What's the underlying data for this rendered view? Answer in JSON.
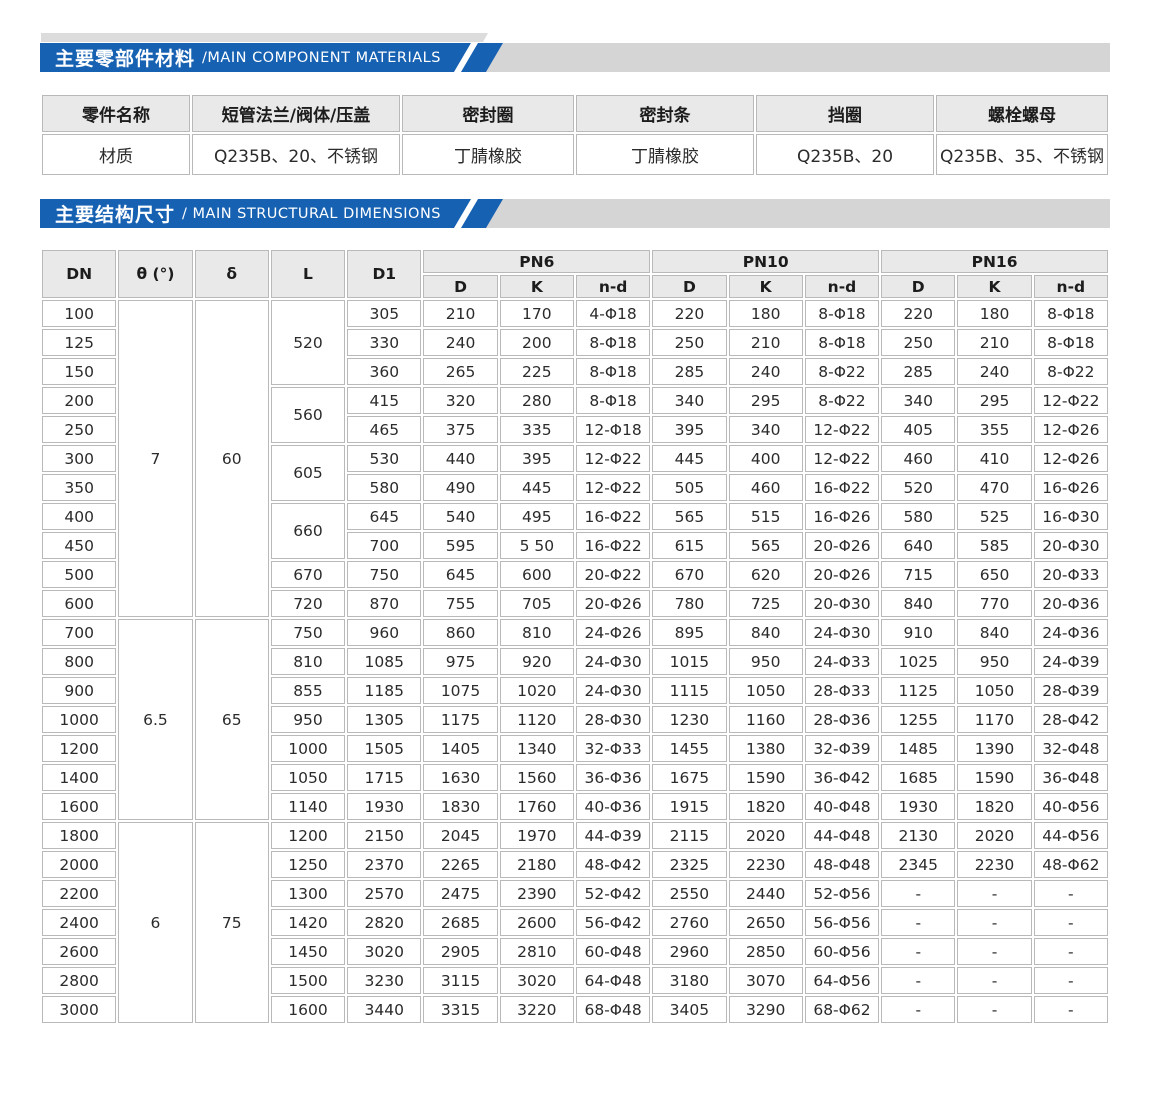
{
  "colors": {
    "accent_blue": "#1661b2",
    "banner_gray": "#d5d5d5",
    "header_cell_gray": "#e9e9e9",
    "grid_line": "#b9b9b9"
  },
  "sections": {
    "materials": {
      "title_cn": "主要零部件材料",
      "title_en": "/MAIN COMPONENT MATERIALS"
    },
    "dimensions": {
      "title_cn": "主要结构尺寸",
      "title_en": "/ MAIN STRUCTURAL DIMENSIONS"
    }
  },
  "materials_table": {
    "headers": [
      "零件名称",
      "短管法兰/阀体/压盖",
      "密封圈",
      "密封条",
      "挡圈",
      "螺栓螺母"
    ],
    "rows": [
      [
        "材质",
        "Q235B、20、不锈钢",
        "丁腈橡胶",
        "丁腈橡胶",
        "Q235B、20",
        "Q235B、35、不锈钢"
      ]
    ]
  },
  "dimensions_table": {
    "main_headers": [
      "DN",
      "θ (°)",
      "δ",
      "L",
      "D1"
    ],
    "pn_groups": [
      "PN6",
      "PN10",
      "PN16"
    ],
    "sub_headers": [
      "D",
      "K",
      "n-d"
    ],
    "rows": [
      {
        "dn": "100",
        "theta": [
          "7",
          11
        ],
        "delta": [
          "60",
          11
        ],
        "l": [
          "520",
          3
        ],
        "d1": "305",
        "pn6": [
          "210",
          "170",
          "4-Φ18"
        ],
        "pn10": [
          "220",
          "180",
          "8-Φ18"
        ],
        "pn16": [
          "220",
          "180",
          "8-Φ18"
        ]
      },
      {
        "dn": "125",
        "d1": "330",
        "pn6": [
          "240",
          "200",
          "8-Φ18"
        ],
        "pn10": [
          "250",
          "210",
          "8-Φ18"
        ],
        "pn16": [
          "250",
          "210",
          "8-Φ18"
        ]
      },
      {
        "dn": "150",
        "d1": "360",
        "pn6": [
          "265",
          "225",
          "8-Φ18"
        ],
        "pn10": [
          "285",
          "240",
          "8-Φ22"
        ],
        "pn16": [
          "285",
          "240",
          "8-Φ22"
        ]
      },
      {
        "dn": "200",
        "l": [
          "560",
          2
        ],
        "d1": "415",
        "pn6": [
          "320",
          "280",
          "8-Φ18"
        ],
        "pn10": [
          "340",
          "295",
          "8-Φ22"
        ],
        "pn16": [
          "340",
          "295",
          "12-Φ22"
        ]
      },
      {
        "dn": "250",
        "d1": "465",
        "pn6": [
          "375",
          "335",
          "12-Φ18"
        ],
        "pn10": [
          "395",
          "340",
          "12-Φ22"
        ],
        "pn16": [
          "405",
          "355",
          "12-Φ26"
        ]
      },
      {
        "dn": "300",
        "l": [
          "605",
          2
        ],
        "d1": "530",
        "pn6": [
          "440",
          "395",
          "12-Φ22"
        ],
        "pn10": [
          "445",
          "400",
          "12-Φ22"
        ],
        "pn16": [
          "460",
          "410",
          "12-Φ26"
        ]
      },
      {
        "dn": "350",
        "d1": "580",
        "pn6": [
          "490",
          "445",
          "12-Φ22"
        ],
        "pn10": [
          "505",
          "460",
          "16-Φ22"
        ],
        "pn16": [
          "520",
          "470",
          "16-Φ26"
        ]
      },
      {
        "dn": "400",
        "l": [
          "660",
          2
        ],
        "d1": "645",
        "pn6": [
          "540",
          "495",
          "16-Φ22"
        ],
        "pn10": [
          "565",
          "515",
          "16-Φ26"
        ],
        "pn16": [
          "580",
          "525",
          "16-Φ30"
        ]
      },
      {
        "dn": "450",
        "d1": "700",
        "pn6": [
          "595",
          "5 50",
          "16-Φ22"
        ],
        "pn10": [
          "615",
          "565",
          "20-Φ26"
        ],
        "pn16": [
          "640",
          "585",
          "20-Φ30"
        ]
      },
      {
        "dn": "500",
        "l": [
          "670",
          1
        ],
        "d1": "750",
        "pn6": [
          "645",
          "600",
          "20-Φ22"
        ],
        "pn10": [
          "670",
          "620",
          "20-Φ26"
        ],
        "pn16": [
          "715",
          "650",
          "20-Φ33"
        ]
      },
      {
        "dn": "600",
        "l": [
          "720",
          1
        ],
        "d1": "870",
        "pn6": [
          "755",
          "705",
          "20-Φ26"
        ],
        "pn10": [
          "780",
          "725",
          "20-Φ30"
        ],
        "pn16": [
          "840",
          "770",
          "20-Φ36"
        ]
      },
      {
        "dn": "700",
        "theta": [
          "6.5",
          7
        ],
        "delta": [
          "65",
          7
        ],
        "l": [
          "750",
          1
        ],
        "d1": "960",
        "pn6": [
          "860",
          "810",
          "24-Φ26"
        ],
        "pn10": [
          "895",
          "840",
          "24-Φ30"
        ],
        "pn16": [
          "910",
          "840",
          "24-Φ36"
        ]
      },
      {
        "dn": "800",
        "l": [
          "810",
          1
        ],
        "d1": "1085",
        "pn6": [
          "975",
          "920",
          "24-Φ30"
        ],
        "pn10": [
          "1015",
          "950",
          "24-Φ33"
        ],
        "pn16": [
          "1025",
          "950",
          "24-Φ39"
        ]
      },
      {
        "dn": "900",
        "l": [
          "855",
          1
        ],
        "d1": "1185",
        "pn6": [
          "1075",
          "1020",
          "24-Φ30"
        ],
        "pn10": [
          "1115",
          "1050",
          "28-Φ33"
        ],
        "pn16": [
          "1125",
          "1050",
          "28-Φ39"
        ]
      },
      {
        "dn": "1000",
        "l": [
          "950",
          1
        ],
        "d1": "1305",
        "pn6": [
          "1175",
          "1120",
          "28-Φ30"
        ],
        "pn10": [
          "1230",
          "1160",
          "28-Φ36"
        ],
        "pn16": [
          "1255",
          "1170",
          "28-Φ42"
        ]
      },
      {
        "dn": "1200",
        "l": [
          "1000",
          1
        ],
        "d1": "1505",
        "pn6": [
          "1405",
          "1340",
          "32-Φ33"
        ],
        "pn10": [
          "1455",
          "1380",
          "32-Φ39"
        ],
        "pn16": [
          "1485",
          "1390",
          "32-Φ48"
        ]
      },
      {
        "dn": "1400",
        "l": [
          "1050",
          1
        ],
        "d1": "1715",
        "pn6": [
          "1630",
          "1560",
          "36-Φ36"
        ],
        "pn10": [
          "1675",
          "1590",
          "36-Φ42"
        ],
        "pn16": [
          "1685",
          "1590",
          "36-Φ48"
        ]
      },
      {
        "dn": "1600",
        "l": [
          "1140",
          1
        ],
        "d1": "1930",
        "pn6": [
          "1830",
          "1760",
          "40-Φ36"
        ],
        "pn10": [
          "1915",
          "1820",
          "40-Φ48"
        ],
        "pn16": [
          "1930",
          "1820",
          "40-Φ56"
        ]
      },
      {
        "dn": "1800",
        "theta": [
          "6",
          7
        ],
        "delta": [
          "75",
          7
        ],
        "l": [
          "1200",
          1
        ],
        "d1": "2150",
        "pn6": [
          "2045",
          "1970",
          "44-Φ39"
        ],
        "pn10": [
          "2115",
          "2020",
          "44-Φ48"
        ],
        "pn16": [
          "2130",
          "2020",
          "44-Φ56"
        ]
      },
      {
        "dn": "2000",
        "l": [
          "1250",
          1
        ],
        "d1": "2370",
        "pn6": [
          "2265",
          "2180",
          "48-Φ42"
        ],
        "pn10": [
          "2325",
          "2230",
          "48-Φ48"
        ],
        "pn16": [
          "2345",
          "2230",
          "48-Φ62"
        ]
      },
      {
        "dn": "2200",
        "l": [
          "1300",
          1
        ],
        "d1": "2570",
        "pn6": [
          "2475",
          "2390",
          "52-Φ42"
        ],
        "pn10": [
          "2550",
          "2440",
          "52-Φ56"
        ],
        "pn16": [
          "-",
          "-",
          "-"
        ]
      },
      {
        "dn": "2400",
        "l": [
          "1420",
          1
        ],
        "d1": "2820",
        "pn6": [
          "2685",
          "2600",
          "56-Φ42"
        ],
        "pn10": [
          "2760",
          "2650",
          "56-Φ56"
        ],
        "pn16": [
          "-",
          "-",
          "-"
        ]
      },
      {
        "dn": "2600",
        "l": [
          "1450",
          1
        ],
        "d1": "3020",
        "pn6": [
          "2905",
          "2810",
          "60-Φ48"
        ],
        "pn10": [
          "2960",
          "2850",
          "60-Φ56"
        ],
        "pn16": [
          "-",
          "-",
          "-"
        ]
      },
      {
        "dn": "2800",
        "l": [
          "1500",
          1
        ],
        "d1": "3230",
        "pn6": [
          "3115",
          "3020",
          "64-Φ48"
        ],
        "pn10": [
          "3180",
          "3070",
          "64-Φ56"
        ],
        "pn16": [
          "-",
          "-",
          "-"
        ]
      },
      {
        "dn": "3000",
        "l": [
          "1600",
          1
        ],
        "d1": "3440",
        "pn6": [
          "3315",
          "3220",
          "68-Φ48"
        ],
        "pn10": [
          "3405",
          "3290",
          "68-Φ62"
        ],
        "pn16": [
          "-",
          "-",
          "-"
        ]
      }
    ]
  }
}
